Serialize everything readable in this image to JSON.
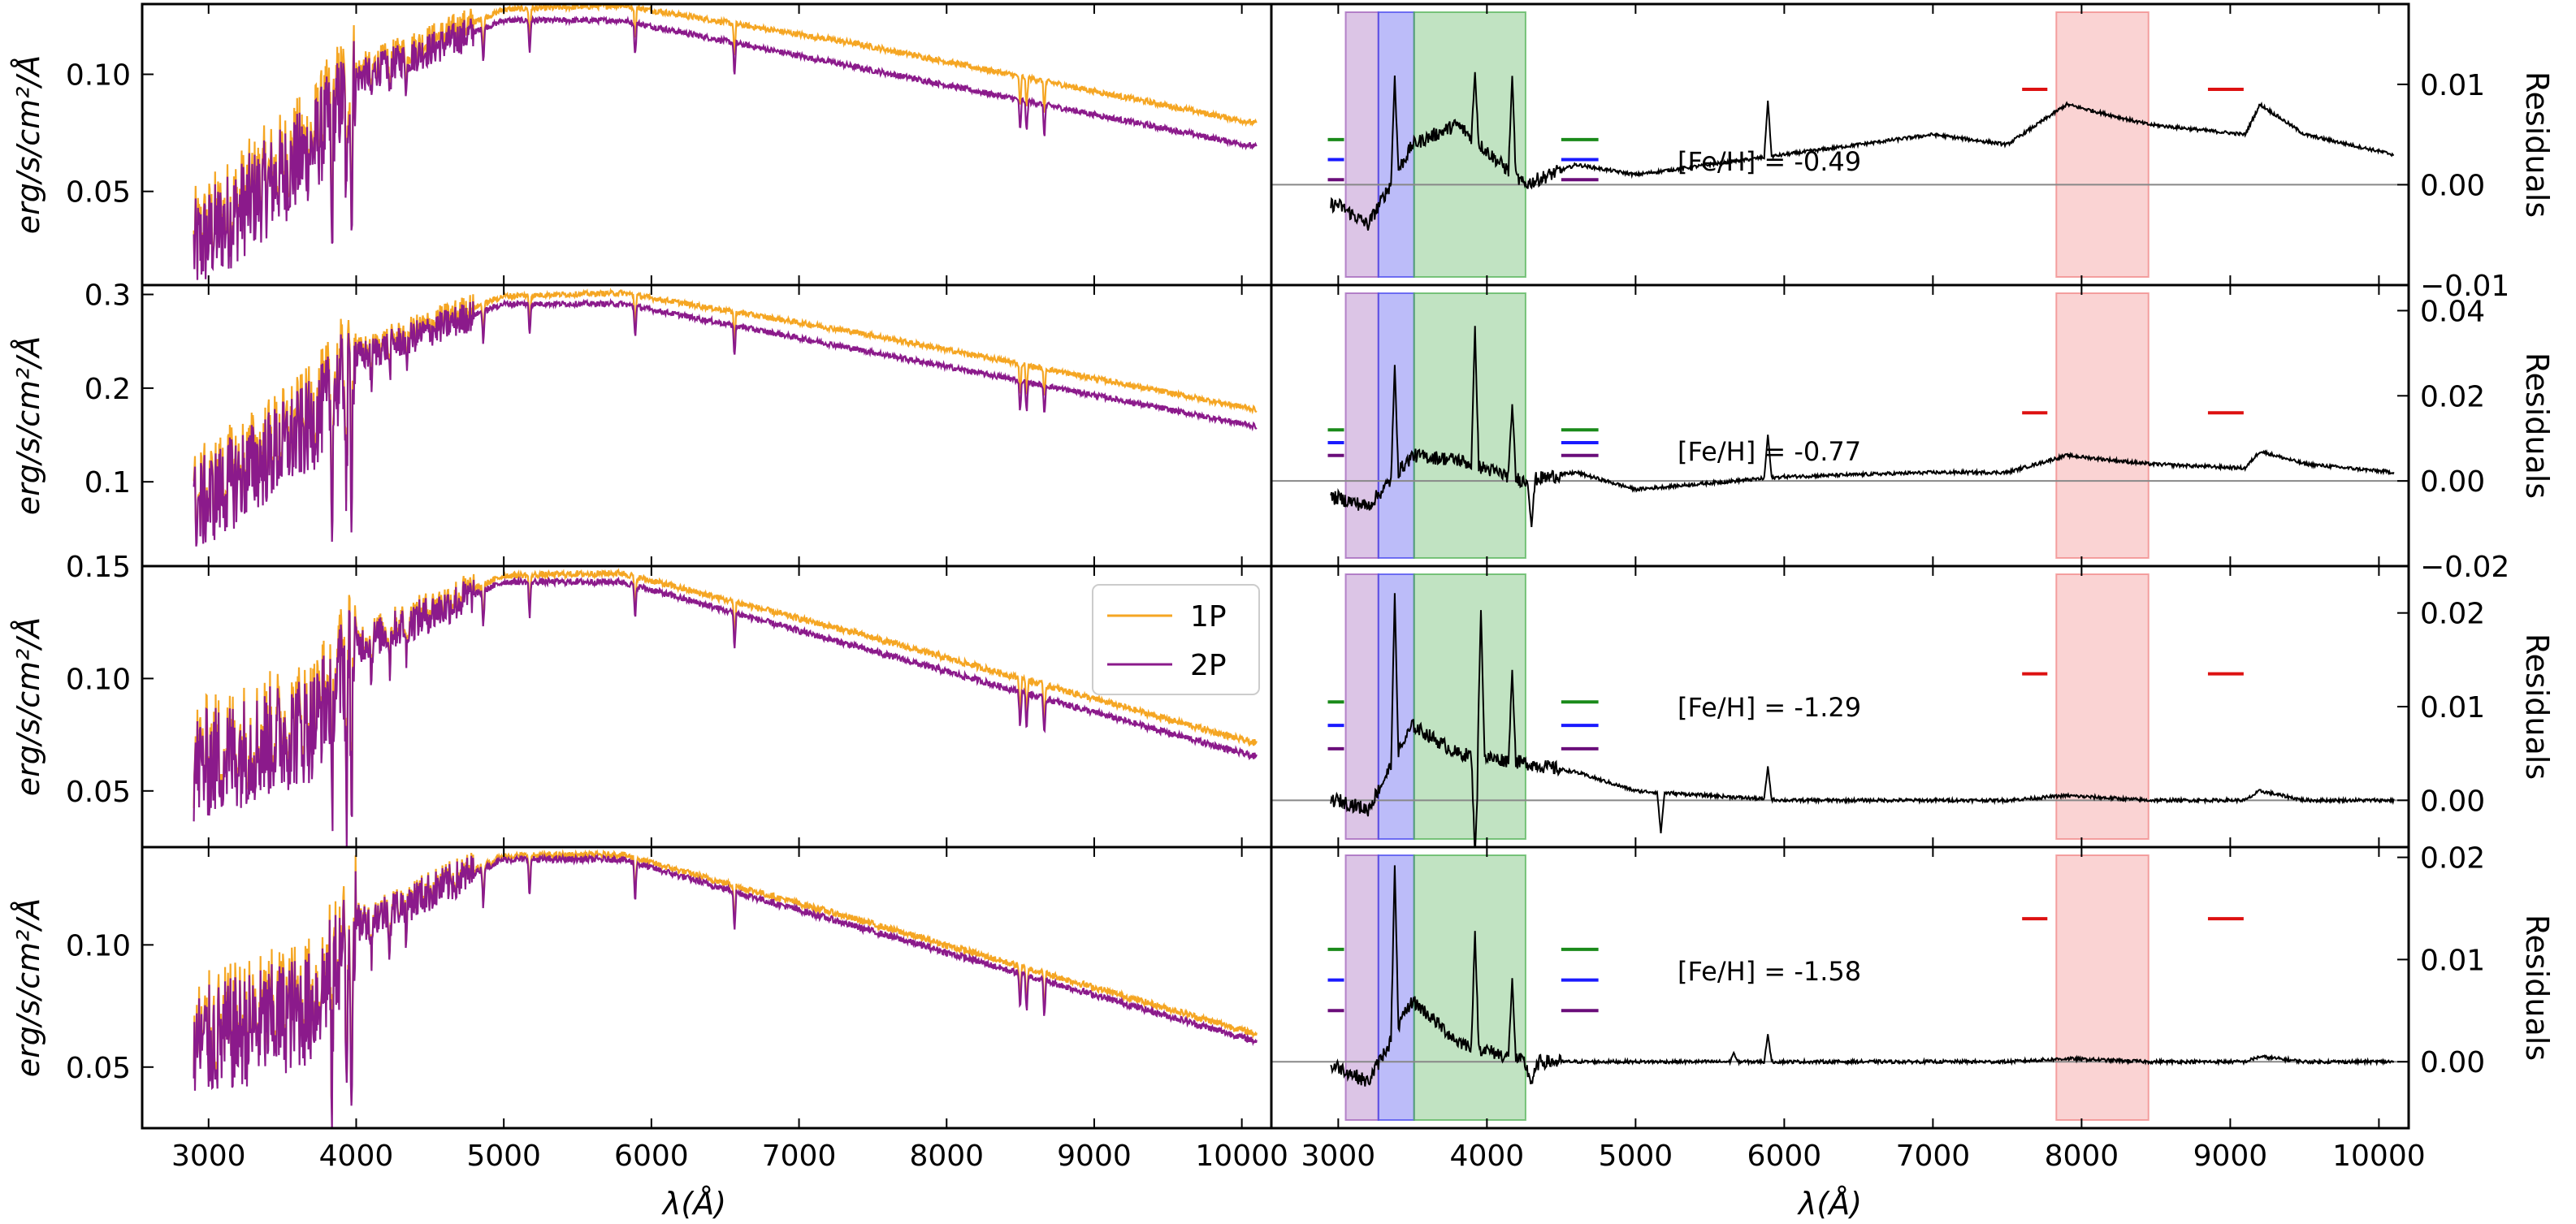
{
  "chart_data": {
    "type": "line",
    "xlabel": "λ(Å)",
    "xlim": [
      2550,
      10200
    ],
    "x_ticks": [
      3000,
      4000,
      5000,
      6000,
      7000,
      8000,
      9000,
      10000
    ],
    "left_ylabel": "erg/s/cm²/Å",
    "right_ylabel": "Residuals",
    "legend": {
      "placement": "right (third row, left column)",
      "entries": [
        {
          "label": "1P",
          "color": "#f5a623"
        },
        {
          "label": "2P",
          "color": "#8b1a8b"
        }
      ]
    },
    "colors": {
      "p1": "#f5a623",
      "p2": "#8b1a8b",
      "residual": "#000000",
      "band_violet": "#9b59b6",
      "band_blue": "#4040ee",
      "band_green": "#4caf50",
      "band_red": "#f08080",
      "mark_green": "#1a8a1a",
      "mark_blue": "#1a1aff",
      "mark_purple": "#6a0d7a",
      "mark_red": "#dd1111"
    },
    "bands": [
      {
        "name": "violet",
        "x": [
          3050,
          3270
        ]
      },
      {
        "name": "blue",
        "x": [
          3270,
          3510
        ]
      },
      {
        "name": "green",
        "x": [
          3510,
          4260
        ]
      },
      {
        "name": "red",
        "x": [
          7830,
          8450
        ]
      }
    ],
    "rows": [
      {
        "spec": {
          "ylim": [
            0.01,
            0.13
          ],
          "ticks": [
            0.05,
            0.1
          ],
          "tick_labels": [
            "0.05",
            "0.10"
          ],
          "peak": 0.123,
          "p1_end": 0.072,
          "p2_end": 0.069,
          "uv": 0.025,
          "diff": 0.01
        },
        "resid": {
          "ylim": [
            -0.01,
            0.018
          ],
          "ticks": [
            -0.01,
            0.0,
            0.01
          ],
          "tick_labels": [
            "−0.01",
            "0.00",
            "0.01"
          ],
          "feh": "[Fe/H] = -0.49",
          "anchors": [
            [
              3000,
              -0.002
            ],
            [
              3200,
              -0.004
            ],
            [
              3500,
              0.004
            ],
            [
              3800,
              0.006
            ],
            [
              4250,
              0.0
            ],
            [
              4600,
              0.002
            ],
            [
              5000,
              0.001
            ],
            [
              6000,
              0.003
            ],
            [
              7000,
              0.005
            ],
            [
              7500,
              0.004
            ],
            [
              7900,
              0.008
            ],
            [
              8450,
              0.006
            ],
            [
              9100,
              0.005
            ],
            [
              9200,
              0.008
            ],
            [
              9500,
              0.005
            ],
            [
              10100,
              0.003
            ]
          ],
          "spikes": [
            [
              3380,
              0.012
            ],
            [
              4170,
              0.012
            ],
            [
              5890,
              0.009
            ],
            [
              3920,
              0.012
            ]
          ],
          "marks_y": [
            0.0045,
            0.0025,
            0.0005
          ],
          "red_y": 0.0095
        }
      },
      {
        "spec": {
          "ylim": [
            0.01,
            0.31
          ],
          "ticks": [
            0.1,
            0.2,
            0.3
          ],
          "tick_labels": [
            "0.1",
            "0.2",
            "0.3"
          ],
          "peak": 0.29,
          "p1_end": 0.161,
          "p2_end": 0.159,
          "uv": 0.07,
          "diff": 0.018
        },
        "resid": {
          "ylim": [
            -0.02,
            0.046
          ],
          "ticks": [
            -0.02,
            0.0,
            0.02,
            0.04
          ],
          "tick_labels": [
            "−0.02",
            "0.00",
            "0.02",
            "0.04"
          ],
          "feh": "[Fe/H] = -0.77",
          "anchors": [
            [
              3000,
              -0.004
            ],
            [
              3200,
              -0.006
            ],
            [
              3500,
              0.006
            ],
            [
              3800,
              0.005
            ],
            [
              4250,
              0.0
            ],
            [
              4600,
              0.002
            ],
            [
              5000,
              -0.002
            ],
            [
              6000,
              0.001
            ],
            [
              7000,
              0.002
            ],
            [
              7500,
              0.002
            ],
            [
              7900,
              0.006
            ],
            [
              8450,
              0.004
            ],
            [
              9100,
              0.003
            ],
            [
              9200,
              0.007
            ],
            [
              9500,
              0.004
            ],
            [
              10100,
              0.002
            ]
          ],
          "spikes": [
            [
              3380,
              0.03
            ],
            [
              4170,
              0.02
            ],
            [
              5890,
              0.012
            ],
            [
              3920,
              0.04
            ],
            [
              4300,
              -0.012
            ]
          ],
          "marks_y": [
            0.012,
            0.009,
            0.006
          ],
          "red_y": 0.016
        }
      },
      {
        "spec": {
          "ylim": [
            0.025,
            0.15
          ],
          "ticks": [
            0.05,
            0.1,
            0.15
          ],
          "tick_labels": [
            "0.05",
            "0.10",
            "0.15"
          ],
          "peak": 0.143,
          "p1_end": 0.066,
          "p2_end": 0.065,
          "uv": 0.06,
          "diff": 0.006
        },
        "resid": {
          "ylim": [
            -0.005,
            0.025
          ],
          "ticks": [
            0.0,
            0.01,
            0.02
          ],
          "tick_labels": [
            "0.00",
            "0.01",
            "0.02"
          ],
          "feh": "[Fe/H] = -1.29",
          "anchors": [
            [
              3000,
              0.0
            ],
            [
              3200,
              -0.001
            ],
            [
              3500,
              0.008
            ],
            [
              3800,
              0.005
            ],
            [
              4250,
              0.004
            ],
            [
              4600,
              0.003
            ],
            [
              5000,
              0.001
            ],
            [
              6000,
              0.0
            ],
            [
              7000,
              0.0
            ],
            [
              7500,
              0.0
            ],
            [
              7900,
              0.0005
            ],
            [
              8450,
              0.0
            ],
            [
              9100,
              0.0
            ],
            [
              9200,
              0.001
            ],
            [
              9500,
              0.0
            ],
            [
              10100,
              0.0
            ]
          ],
          "spikes": [
            [
              3380,
              0.024
            ],
            [
              4170,
              0.015
            ],
            [
              5890,
              0.004
            ],
            [
              3920,
              -0.007
            ],
            [
              5170,
              -0.004
            ],
            [
              3960,
              0.022
            ]
          ],
          "marks_y": [
            0.0105,
            0.008,
            0.0055
          ],
          "red_y": 0.0135
        }
      },
      {
        "spec": {
          "ylim": [
            0.025,
            0.14
          ],
          "ticks": [
            0.05,
            0.1
          ],
          "tick_labels": [
            "0.05",
            "0.10"
          ],
          "peak": 0.135,
          "p1_end": 0.061,
          "p2_end": 0.0605,
          "uv": 0.058,
          "diff": 0.003
        },
        "resid": {
          "ylim": [
            -0.0065,
            0.021
          ],
          "ticks": [
            0.0,
            0.01,
            0.02
          ],
          "tick_labels": [
            "0.00",
            "0.01",
            "0.02"
          ],
          "feh": "[Fe/H] = -1.58",
          "anchors": [
            [
              3000,
              -0.0005
            ],
            [
              3200,
              -0.002
            ],
            [
              3500,
              0.006
            ],
            [
              3800,
              0.002
            ],
            [
              4250,
              0.0
            ],
            [
              4300,
              -0.002
            ],
            [
              4350,
              0.0
            ],
            [
              5000,
              0.0
            ],
            [
              6000,
              0.0
            ],
            [
              7000,
              0.0
            ],
            [
              7500,
              0.0
            ],
            [
              7900,
              0.0003
            ],
            [
              8450,
              0.0
            ],
            [
              9100,
              0.0
            ],
            [
              9200,
              0.0005
            ],
            [
              9500,
              0.0
            ],
            [
              10100,
              0.0
            ]
          ],
          "spikes": [
            [
              3380,
              0.021
            ],
            [
              4170,
              0.009
            ],
            [
              5890,
              0.003
            ],
            [
              3920,
              0.014
            ],
            [
              5660,
              0.001
            ]
          ],
          "marks_y": [
            0.011,
            0.008,
            0.005
          ],
          "red_y": 0.014
        }
      }
    ]
  }
}
